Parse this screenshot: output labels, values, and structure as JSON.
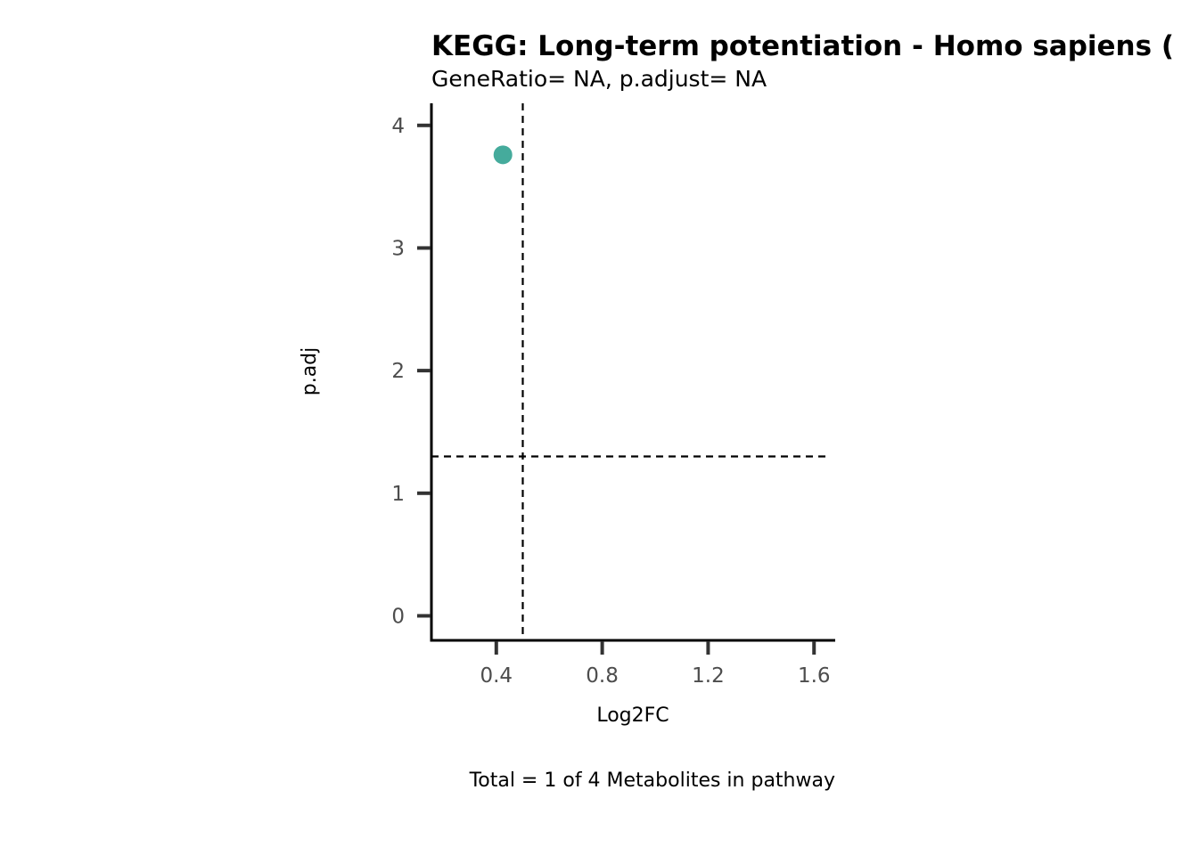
{
  "chart_data": {
    "type": "scatter",
    "title": "KEGG: Long-term potentiation - Homo sapiens (",
    "subtitle": "GeneRatio= NA, p.adjust= NA",
    "xlabel": "Log2FC",
    "ylabel": "p.adj",
    "caption": "Total = 1 of 4 Metabolites in pathway",
    "xlim": [
      0.155,
      1.68
    ],
    "ylim": [
      -0.2,
      4.18
    ],
    "x_ticks": [
      0.4,
      0.8,
      1.2,
      1.6
    ],
    "x_tick_labels": [
      "0.4",
      "0.8",
      "1.2",
      "1.6"
    ],
    "y_ticks": [
      0,
      1,
      2,
      3,
      4
    ],
    "y_tick_labels": [
      "0",
      "1",
      "2",
      "3",
      "4"
    ],
    "points": [
      {
        "x": 0.425,
        "y": 3.76
      }
    ],
    "threshold_lines": {
      "vertical_x": 0.5,
      "horizontal_y": 1.3
    },
    "grid": false,
    "point_color": "#45ab9c",
    "axis_color": "#000000",
    "tick_color": "#333333",
    "threshold_line_color": "#000000"
  }
}
